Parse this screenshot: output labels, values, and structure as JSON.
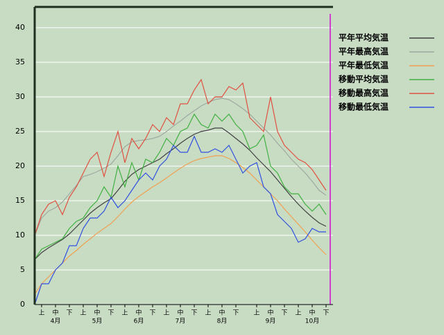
{
  "chart_data": {
    "type": "line",
    "categories": [
      null,
      null,
      null,
      null,
      null,
      null,
      null,
      null,
      null,
      null,
      null,
      null,
      null,
      null,
      null,
      null,
      null,
      null,
      null,
      null,
      null,
      null,
      null,
      null,
      null,
      null,
      null,
      null,
      null,
      null,
      null,
      null,
      null,
      null,
      null,
      null,
      null,
      null,
      null,
      null,
      null,
      null,
      null
    ],
    "xticks": [
      {
        "value": 1,
        "label": "上"
      },
      {
        "value": 3,
        "label": "中"
      },
      {
        "value": 5,
        "label": "下"
      },
      {
        "value": 7,
        "label": "上"
      },
      {
        "value": 9,
        "label": "中"
      },
      {
        "value": 11,
        "label": "下"
      },
      {
        "value": 13,
        "label": "上"
      },
      {
        "value": 15,
        "label": "中"
      },
      {
        "value": 17,
        "label": "下"
      },
      {
        "value": 19,
        "label": "上"
      },
      {
        "value": 21,
        "label": "中"
      },
      {
        "value": 23,
        "label": "下"
      },
      {
        "value": 25,
        "label": "上"
      },
      {
        "value": 27,
        "label": "中"
      },
      {
        "value": 29,
        "label": "下"
      },
      {
        "value": 32,
        "label": "上"
      },
      {
        "value": 34,
        "label": "中"
      },
      {
        "value": 36,
        "label": "下"
      },
      {
        "value": 38,
        "label": "上"
      },
      {
        "value": 40,
        "label": "中"
      },
      {
        "value": 42,
        "label": "下"
      }
    ],
    "month_labels": [
      {
        "value": 3,
        "label": "4月"
      },
      {
        "value": 9,
        "label": "5月"
      },
      {
        "value": 15,
        "label": "6月"
      },
      {
        "value": 21,
        "label": "7月"
      },
      {
        "value": 27,
        "label": "8月"
      },
      {
        "value": 34,
        "label": "9月"
      },
      {
        "value": 40,
        "label": "10月"
      }
    ],
    "ylim": [
      0,
      43
    ],
    "yticks": [
      0,
      5,
      10,
      15,
      20,
      25,
      30,
      35,
      40
    ],
    "grid": true,
    "legend": "upper right",
    "series": [
      {
        "name": "平年平均気温",
        "color": "#404040",
        "values": [
          6.5,
          7.5,
          8.2,
          8.8,
          9.4,
          10.2,
          11.2,
          12.2,
          13.2,
          14,
          14.7,
          15.3,
          16.5,
          17.8,
          18.8,
          19.5,
          20,
          20.5,
          21,
          21.8,
          22.5,
          23.3,
          24,
          24.6,
          25,
          25.2,
          25.5,
          25.5,
          24.8,
          24,
          23.2,
          22.3,
          21.2,
          20.2,
          19.2,
          18,
          16.8,
          15.6,
          14.5,
          13.5,
          12.6,
          11.8,
          11.3
        ]
      },
      {
        "name": "平年最高気温",
        "color": "#a0a8a0",
        "values": [
          10,
          12.5,
          13.5,
          14,
          14.8,
          16,
          17.2,
          18.5,
          18.8,
          19.2,
          19.7,
          20.3,
          21.5,
          22.8,
          23.5,
          23.7,
          23.8,
          24,
          24.3,
          25,
          25.8,
          26.5,
          27.3,
          28,
          28.7,
          29.2,
          29.6,
          29.8,
          29.6,
          29,
          28.3,
          27.5,
          26.5,
          25.5,
          24.5,
          23.3,
          22.2,
          21,
          20,
          19,
          17.8,
          16.5,
          15.8
        ]
      },
      {
        "name": "平年最低気温",
        "color": "#f0a050",
        "values": [
          1.5,
          3,
          4,
          5,
          6,
          7,
          7.8,
          8.7,
          9.5,
          10.3,
          11,
          11.7,
          12.7,
          13.8,
          14.8,
          15.6,
          16.3,
          17,
          17.6,
          18.3,
          19,
          19.7,
          20.3,
          20.8,
          21.1,
          21.3,
          21.5,
          21.5,
          21.1,
          20.5,
          19.8,
          19,
          18,
          17,
          16,
          15,
          13.8,
          12.7,
          11.6,
          10.5,
          9.3,
          8.2,
          7.2
        ]
      },
      {
        "name": "移動平均気温",
        "color": "#40b040",
        "values": [
          6.5,
          8,
          8.5,
          9,
          9.5,
          11,
          12,
          12.5,
          14,
          15,
          17,
          15.5,
          20,
          17,
          20.5,
          18,
          21,
          20.5,
          22,
          24,
          23,
          25,
          25.5,
          27.5,
          26,
          25.5,
          27.5,
          26.5,
          27.5,
          26,
          25,
          22.5,
          23,
          24.5,
          20,
          19,
          17,
          16,
          16,
          14.5,
          13.5,
          14.5,
          13
        ]
      },
      {
        "name": "移動最高気温",
        "color": "#e05040",
        "values": [
          10,
          13,
          14.5,
          15,
          13,
          15.5,
          17,
          19,
          21,
          22,
          18.5,
          22,
          25,
          20.5,
          24,
          22.5,
          24,
          26,
          25,
          27,
          26,
          29,
          29,
          31,
          32.5,
          29,
          30,
          30,
          31.5,
          31,
          32,
          27,
          26,
          25,
          30,
          25,
          23,
          22,
          21,
          20.5,
          19.5,
          18,
          16.5
        ]
      },
      {
        "name": "移動最低気温",
        "color": "#3050e0",
        "values": [
          0,
          3,
          3,
          5,
          6,
          8.5,
          8.5,
          11,
          12.5,
          12.5,
          13.5,
          15.5,
          14,
          15,
          16.5,
          18,
          19,
          18,
          20,
          21,
          23,
          22,
          22,
          24.3,
          22,
          22,
          22.5,
          22,
          23,
          21,
          19,
          20,
          20.5,
          17,
          16,
          13,
          12,
          11,
          9,
          9.5,
          11,
          10.5,
          10.5
        ]
      }
    ]
  }
}
